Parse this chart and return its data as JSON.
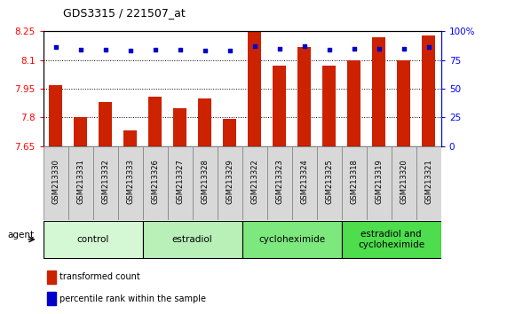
{
  "title": "GDS3315 / 221507_at",
  "samples": [
    "GSM213330",
    "GSM213331",
    "GSM213332",
    "GSM213333",
    "GSM213326",
    "GSM213327",
    "GSM213328",
    "GSM213329",
    "GSM213322",
    "GSM213323",
    "GSM213324",
    "GSM213325",
    "GSM213318",
    "GSM213319",
    "GSM213320",
    "GSM213321"
  ],
  "red_values": [
    7.97,
    7.8,
    7.88,
    7.73,
    7.91,
    7.85,
    7.9,
    7.79,
    8.25,
    8.07,
    8.17,
    8.07,
    8.1,
    8.22,
    8.1,
    8.23
  ],
  "blue_values": [
    86,
    84,
    84,
    83,
    84,
    84,
    83,
    83,
    87,
    85,
    87,
    84,
    85,
    85,
    85,
    86
  ],
  "groups": [
    {
      "label": "control",
      "start": 0,
      "end": 4,
      "color": "#d4f7d4"
    },
    {
      "label": "estradiol",
      "start": 4,
      "end": 8,
      "color": "#b8f0b8"
    },
    {
      "label": "cycloheximide",
      "start": 8,
      "end": 12,
      "color": "#7de87d"
    },
    {
      "label": "estradiol and\ncycloheximide",
      "start": 12,
      "end": 16,
      "color": "#4ddd4d"
    }
  ],
  "ylim_left": [
    7.65,
    8.25
  ],
  "ylim_right": [
    0,
    100
  ],
  "yticks_left": [
    7.65,
    7.8,
    7.95,
    8.1,
    8.25
  ],
  "ytick_labels_left": [
    "7.65",
    "7.8",
    "7.95",
    "8.1",
    "8.25"
  ],
  "yticks_right": [
    0,
    25,
    50,
    75,
    100
  ],
  "ytick_labels_right": [
    "0",
    "25",
    "50",
    "75",
    "100%"
  ],
  "bar_color": "#cc2200",
  "dot_color": "#0000cc",
  "bar_width": 0.55,
  "background_color": "#ffffff",
  "agent_label": "agent",
  "legend_red": "transformed count",
  "legend_blue": "percentile rank within the sample"
}
